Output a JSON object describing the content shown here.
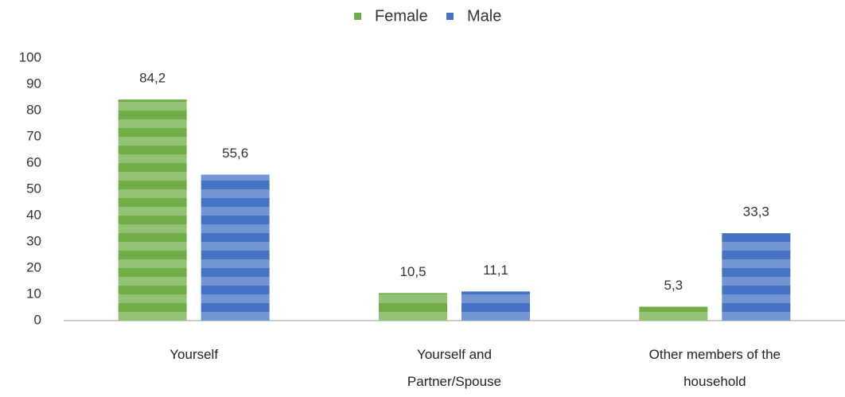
{
  "chart_data": {
    "type": "bar",
    "categories": [
      "Yourself",
      "Yourself and Partner/Spouse",
      "Other members of the household"
    ],
    "series": [
      {
        "name": "Female",
        "color": "#70ad47",
        "values": [
          84.2,
          10.5,
          5.3
        ],
        "value_labels": [
          "84,2",
          "10,5",
          "5,3"
        ]
      },
      {
        "name": "Male",
        "color": "#4472c4",
        "values": [
          55.6,
          11.1,
          33.3
        ],
        "value_labels": [
          "55,6",
          "11,1",
          "33,3"
        ]
      }
    ],
    "ylim": [
      0,
      100
    ],
    "yticks": [
      0,
      10,
      20,
      30,
      40,
      50,
      60,
      70,
      80,
      90,
      100
    ],
    "legend": "top",
    "grid": false
  }
}
